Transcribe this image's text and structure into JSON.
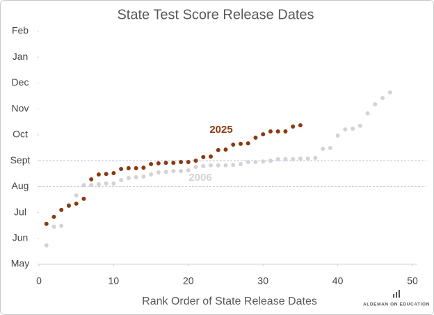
{
  "chart_data": {
    "type": "scatter",
    "title": "State Test Score Release Dates",
    "x_label": "Rank Order of State Release Dates",
    "source": "ALDEMAN ON EDUCATION",
    "xlim": [
      0,
      50
    ],
    "xticks": [
      0,
      10,
      20,
      30,
      40,
      50
    ],
    "ylim": [
      5,
      14
    ],
    "yticks": [
      {
        "value": 5,
        "label": "May"
      },
      {
        "value": 6,
        "label": "Jun"
      },
      {
        "value": 7,
        "label": "Jul"
      },
      {
        "value": 8,
        "label": "Aug"
      },
      {
        "value": 9,
        "label": "Sept"
      },
      {
        "value": 10,
        "label": "Oct"
      },
      {
        "value": 11,
        "label": "Nov"
      },
      {
        "value": 12,
        "label": "Dec"
      },
      {
        "value": 13,
        "label": "Jan"
      },
      {
        "value": 14,
        "label": "Feb"
      }
    ],
    "reference_lines": [
      8,
      9
    ],
    "series": [
      {
        "name": "2006",
        "color": "#d3d3d3",
        "x": [
          1,
          2,
          3,
          4,
          5,
          6,
          7,
          8,
          9,
          10,
          11,
          12,
          13,
          14,
          15,
          16,
          17,
          18,
          19,
          20,
          21,
          22,
          23,
          24,
          25,
          26,
          27,
          28,
          29,
          30,
          31,
          32,
          33,
          34,
          35,
          36,
          37,
          38,
          39,
          40,
          41,
          42,
          43,
          44,
          45,
          46,
          47
        ],
        "values": [
          5.73,
          6.45,
          6.48,
          7.3,
          7.66,
          8.06,
          8.06,
          8.09,
          8.12,
          8.12,
          8.25,
          8.33,
          8.36,
          8.39,
          8.47,
          8.55,
          8.57,
          8.6,
          8.6,
          8.63,
          8.76,
          8.79,
          8.82,
          8.82,
          8.82,
          8.84,
          8.87,
          8.95,
          8.95,
          8.97,
          9.0,
          9.06,
          9.06,
          9.06,
          9.08,
          9.08,
          9.11,
          9.46,
          9.49,
          9.97,
          10.21,
          10.24,
          10.35,
          10.83,
          11.18,
          11.42,
          11.64
        ]
      },
      {
        "name": "2025",
        "color": "#8b3a0f",
        "x": [
          1,
          2,
          3,
          4,
          5,
          6,
          7,
          8,
          9,
          10,
          11,
          12,
          13,
          14,
          15,
          16,
          17,
          18,
          19,
          20,
          21,
          22,
          23,
          24,
          25,
          26,
          27,
          28,
          29,
          30,
          31,
          32,
          33,
          34,
          35
        ],
        "values": [
          6.56,
          6.83,
          7.1,
          7.26,
          7.34,
          7.53,
          8.28,
          8.47,
          8.49,
          8.52,
          8.68,
          8.71,
          8.71,
          8.73,
          8.87,
          8.9,
          8.92,
          8.92,
          8.95,
          8.95,
          9.0,
          9.14,
          9.16,
          9.41,
          9.43,
          9.62,
          9.65,
          9.67,
          9.89,
          10.02,
          10.13,
          10.13,
          10.13,
          10.32,
          10.37
        ]
      }
    ]
  }
}
